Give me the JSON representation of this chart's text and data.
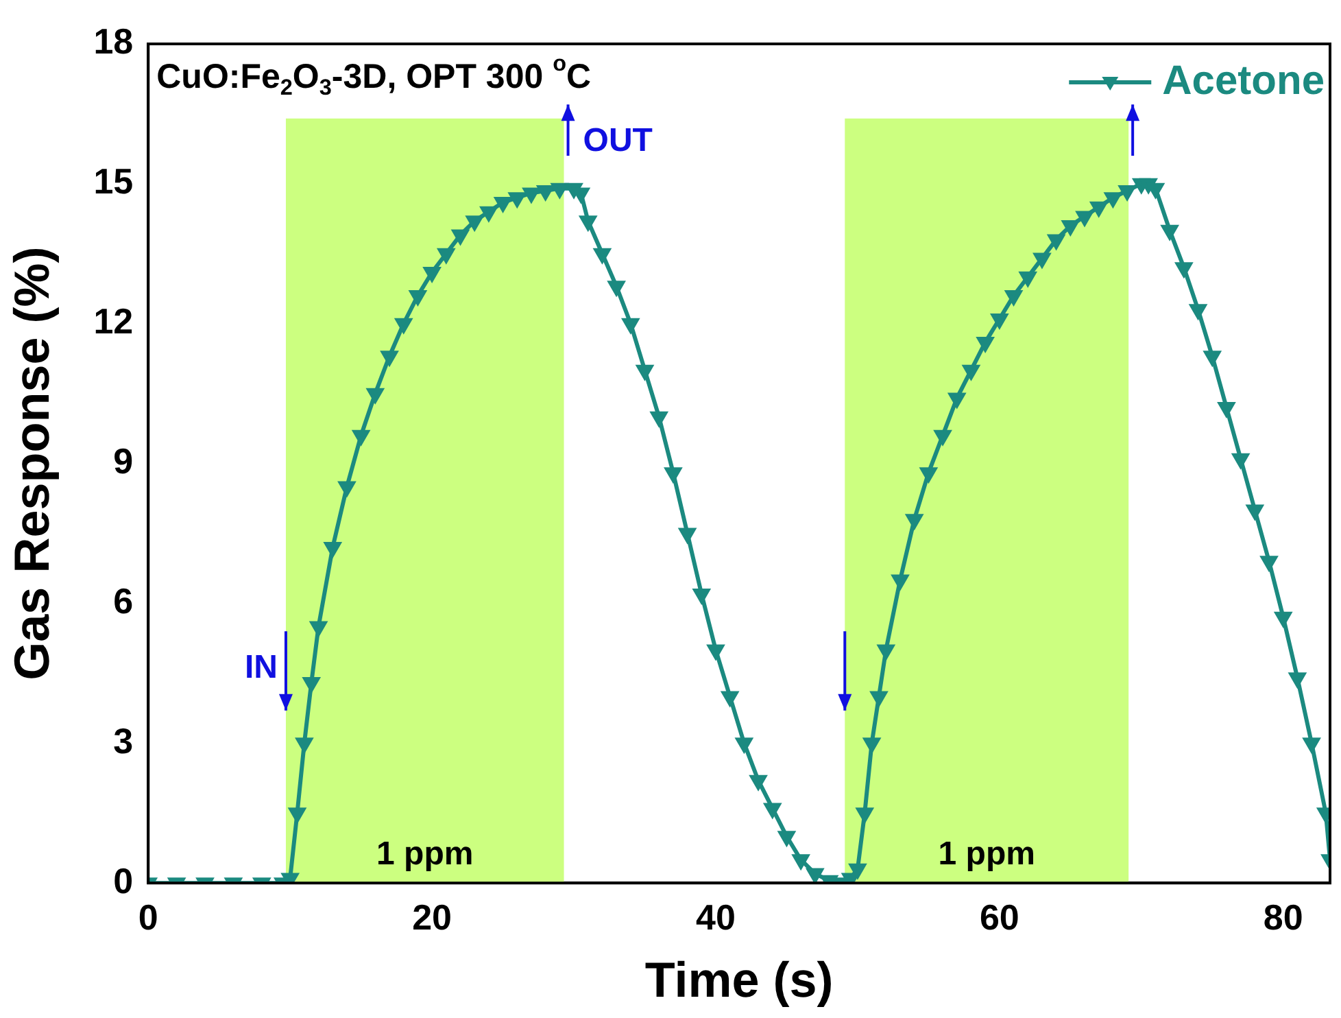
{
  "chart_data": {
    "type": "line",
    "title": "CuO:Fe$_{2}$O$_{3}$-3D, OPT 300 $^{o}$C",
    "xlabel": "Time (s)",
    "ylabel": "Gas Response (%)",
    "xlim": [
      0,
      83.3
    ],
    "xticks": [
      0,
      20,
      40,
      60,
      80
    ],
    "ylim": [
      0,
      18
    ],
    "yticks": [
      0,
      3,
      6,
      9,
      12,
      15,
      18
    ],
    "series": [
      {
        "name": "Acetone",
        "color": "#1b8a80",
        "x": [
          0,
          2,
          4,
          6,
          8,
          9.5,
          10,
          10.5,
          11,
          11.5,
          12,
          13,
          14,
          15,
          16,
          17,
          18,
          19,
          20,
          21,
          22,
          23,
          24,
          25,
          26,
          27,
          28,
          29,
          30,
          30.5,
          31,
          32,
          33,
          34,
          35,
          36,
          37,
          38,
          39,
          40,
          41,
          42,
          43,
          44,
          45,
          46,
          47,
          48,
          49,
          49.5,
          50,
          50.5,
          51,
          51.5,
          52,
          53,
          54,
          55,
          56,
          57,
          58,
          59,
          60,
          61,
          62,
          63,
          64,
          65,
          66,
          67,
          68,
          69,
          70,
          70.5,
          71,
          72,
          73,
          74,
          75,
          76,
          77,
          78,
          79,
          80,
          81,
          82,
          83,
          83.3
        ],
        "values": [
          0,
          0,
          0,
          0,
          0,
          0,
          0.1,
          1.5,
          3,
          4.3,
          5.5,
          7.2,
          8.5,
          9.6,
          10.5,
          11.3,
          12,
          12.6,
          13.1,
          13.5,
          13.9,
          14.2,
          14.4,
          14.6,
          14.7,
          14.8,
          14.85,
          14.9,
          14.9,
          14.8,
          14.2,
          13.5,
          12.8,
          12,
          11,
          10,
          8.8,
          7.5,
          6.2,
          5,
          4,
          3,
          2.2,
          1.6,
          1,
          0.5,
          0.2,
          0.05,
          0,
          0.1,
          0.3,
          1.5,
          3,
          4,
          5,
          6.5,
          7.8,
          8.8,
          9.6,
          10.4,
          11,
          11.6,
          12.1,
          12.6,
          13,
          13.4,
          13.8,
          14.1,
          14.3,
          14.5,
          14.7,
          14.85,
          15,
          15,
          14.9,
          14,
          13.2,
          12.3,
          11.3,
          10.2,
          9.1,
          8,
          6.9,
          5.7,
          4.4,
          3,
          1.5,
          0.5
        ]
      }
    ],
    "bands": [
      {
        "axis": "x",
        "from": 9.7,
        "to": 29.3,
        "label": "1 ppm",
        "color": "#ccff80"
      },
      {
        "axis": "x",
        "from": 49.1,
        "to": 69.1,
        "label": "1 ppm",
        "color": "#ccff80"
      }
    ],
    "annotations": [
      "IN",
      "OUT"
    ],
    "legend": "top right",
    "marker": "triangle",
    "line_style": "solid"
  }
}
